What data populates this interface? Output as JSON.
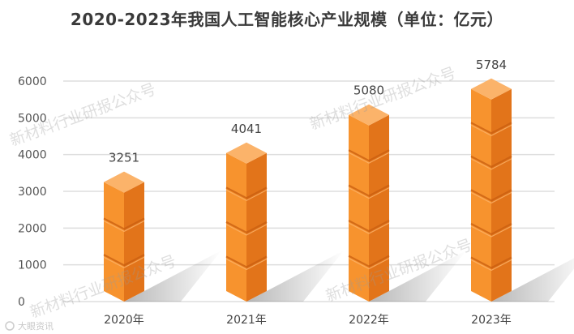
{
  "chart_data": {
    "type": "bar",
    "title": "2020-2023年我国人工智能核心产业规模（单位：亿元）",
    "categories": [
      "2020年",
      "2021年",
      "2022年",
      "2023年"
    ],
    "values": [
      3251,
      4041,
      5080,
      5784
    ],
    "ylim": [
      0,
      6000
    ],
    "yticks": [
      0,
      1000,
      2000,
      3000,
      4000,
      5000,
      6000
    ],
    "grid": true,
    "legend": "none",
    "bar_style": "stacked-cubes",
    "colors": {
      "front": "#F7932E",
      "side": "#E2741A",
      "top": "#FBB36A",
      "seam": "#C85E10",
      "grid": "#DDDDDD"
    }
  },
  "watermark": "新材料行业研报公众号",
  "source": "大眼资讯"
}
